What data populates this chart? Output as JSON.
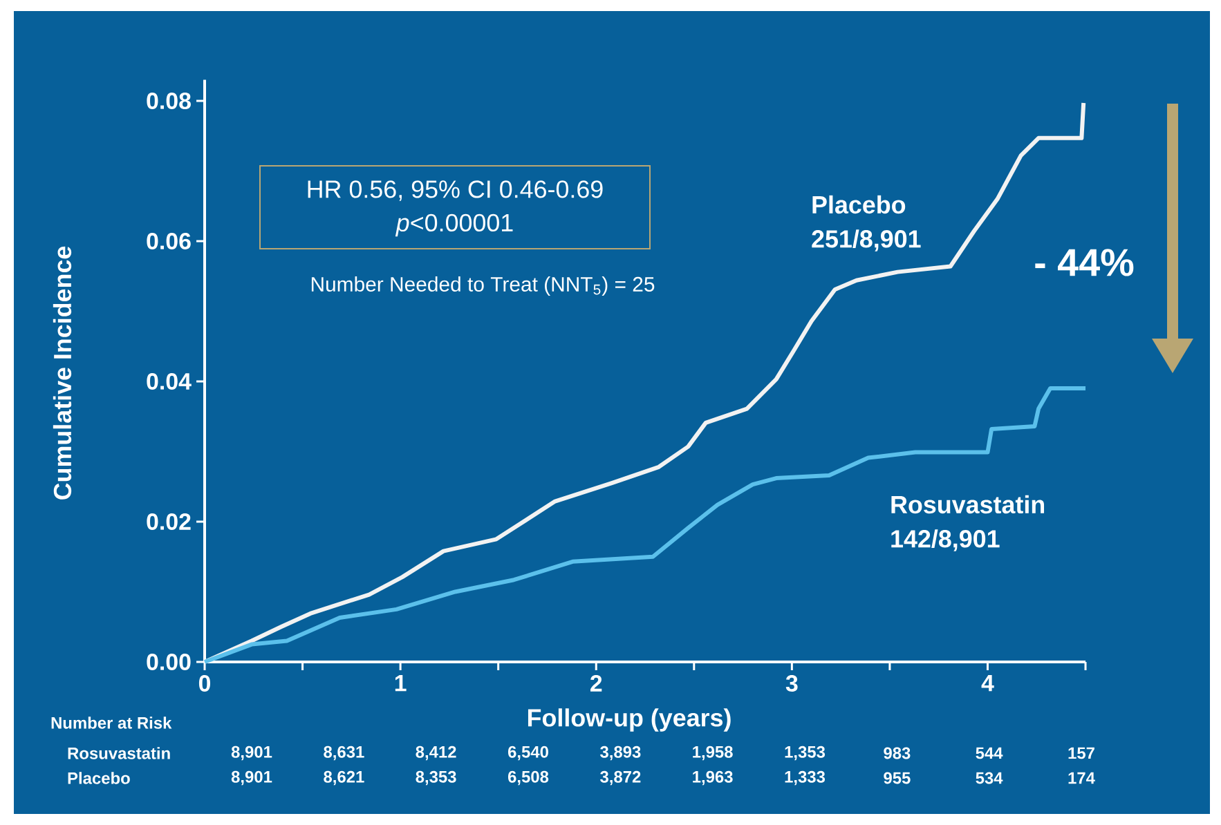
{
  "chart_data": {
    "type": "line",
    "xlabel": "Follow-up (years)",
    "ylabel": "Cumulative Incidence",
    "xlim": [
      0,
      4.5
    ],
    "ylim": [
      0,
      0.083
    ],
    "xticks": [
      0,
      {
        "value": 0.5,
        "label": null
      },
      1,
      {
        "value": 1.5,
        "label": null
      },
      2,
      {
        "value": 2.5,
        "label": null
      },
      3,
      {
        "value": 3.5,
        "label": null
      },
      4,
      {
        "value": 4.5,
        "label": null
      }
    ],
    "yticks": [
      {
        "value": 0,
        "label": "0.00"
      },
      0.02,
      0.04,
      0.06,
      0.08
    ],
    "series": [
      {
        "name": "Placebo",
        "color": "#f2f2f2",
        "x": [
          0,
          0.24,
          0.39,
          0.54,
          0.84,
          1.01,
          1.22,
          1.49,
          1.79,
          2.08,
          2.32,
          2.47,
          2.56,
          2.77,
          2.92,
          3.01,
          3.1,
          3.22,
          3.33,
          3.54,
          3.81,
          3.93,
          4.05,
          4.17,
          4.26,
          4.48,
          4.49
        ],
        "values": [
          0,
          0.003,
          0.005,
          0.0069,
          0.0096,
          0.0121,
          0.0158,
          0.0175,
          0.0229,
          0.0255,
          0.0278,
          0.0307,
          0.0341,
          0.0361,
          0.0403,
          0.0444,
          0.0486,
          0.0531,
          0.0544,
          0.0556,
          0.0564,
          0.0614,
          0.066,
          0.0722,
          0.0747,
          0.0747,
          0.0797
        ]
      },
      {
        "name": "Rosuvastatin",
        "color": "#5bc0eb",
        "x": [
          0,
          0.24,
          0.42,
          0.69,
          0.98,
          1.28,
          1.58,
          1.88,
          2.29,
          2.47,
          2.62,
          2.8,
          2.92,
          3.19,
          3.39,
          3.63,
          4.0,
          4.02,
          4.24,
          4.26,
          4.32,
          4.5
        ],
        "values": [
          0,
          0.0025,
          0.003,
          0.0063,
          0.0075,
          0.01,
          0.0117,
          0.0143,
          0.015,
          0.0191,
          0.0224,
          0.0253,
          0.0262,
          0.0266,
          0.0291,
          0.0299,
          0.0299,
          0.0332,
          0.0336,
          0.0361,
          0.039,
          0.039
        ]
      }
    ],
    "annotations": [
      "HR 0.56, 95% CI 0.46-0.69",
      "*p*<0.00001",
      "Number Needed to Treat (NNT$_{5}$) = 25",
      "251/8,901",
      "142/8,901",
      "- 44%",
      "Number at Risk",
      "Rosuvastatin",
      "8,901",
      "8,631",
      "8,412",
      "6,540",
      "3,893",
      "1,958",
      "1,353",
      "983",
      "544",
      "157",
      "Placebo",
      "8,901",
      "8,621",
      "8,353",
      "6,508",
      "3,872",
      "1,963",
      "1,333",
      "955",
      "534",
      "174"
    ]
  }
}
